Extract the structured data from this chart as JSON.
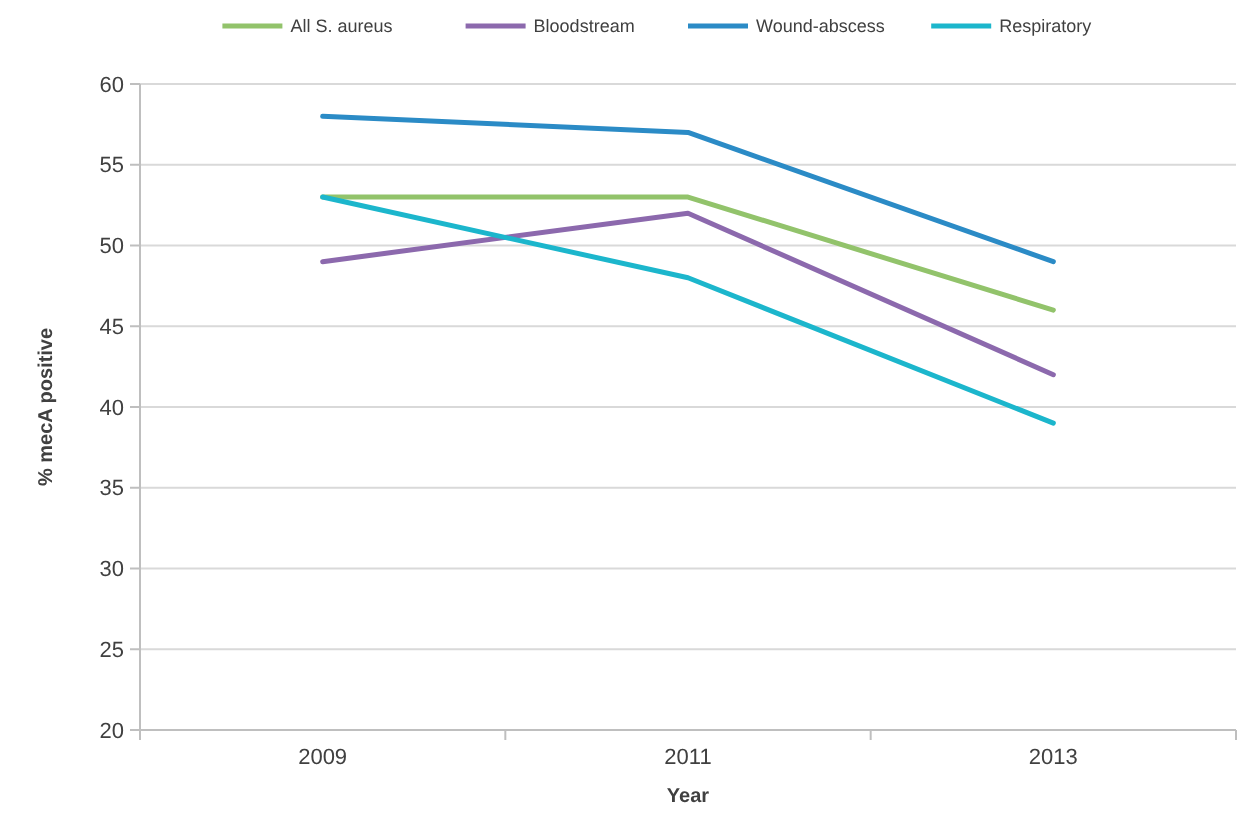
{
  "chart_data": {
    "type": "line",
    "categories": [
      "2009",
      "2011",
      "2013"
    ],
    "series": [
      {
        "name": "All S. aureus",
        "color": "#92c36b",
        "values": [
          53,
          53,
          46
        ]
      },
      {
        "name": "Bloodstream",
        "color": "#8c69ad",
        "values": [
          49,
          52,
          42
        ]
      },
      {
        "name": "Wound-abscess",
        "color": "#2b8bc6",
        "values": [
          58,
          57,
          49
        ]
      },
      {
        "name": "Respiratory",
        "color": "#1cb6cc",
        "values": [
          53,
          48,
          39
        ]
      }
    ],
    "xlabel": "Year",
    "ylabel": "% mecA positive",
    "ylim": [
      20,
      60
    ],
    "yticks": [
      20,
      25,
      30,
      35,
      40,
      45,
      50,
      55,
      60
    ],
    "grid": "y",
    "legend": "top",
    "marker": "none",
    "line_style": "solid"
  }
}
